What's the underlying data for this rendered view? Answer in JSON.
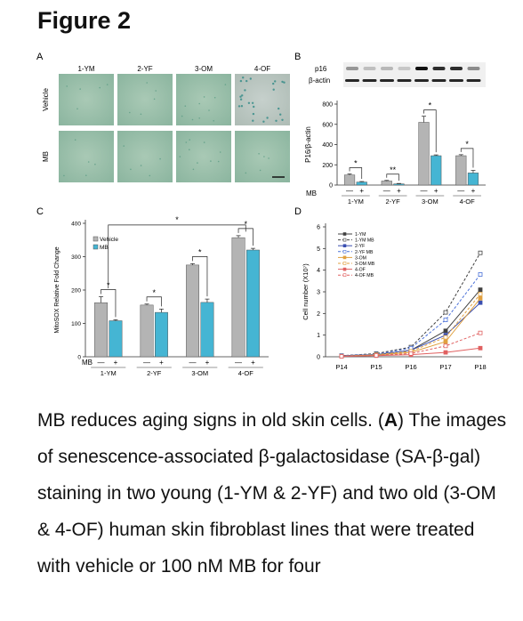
{
  "figure": {
    "title": "Figure 2",
    "panel_labels": {
      "a": "A",
      "b": "B",
      "c": "C",
      "d": "D"
    }
  },
  "panelA": {
    "columns": [
      "1-YM",
      "2-YF",
      "3-OM",
      "4-OF"
    ],
    "rows": [
      "Vehicle",
      "MB"
    ]
  },
  "panelB": {
    "blot_labels": [
      "p16",
      "β-actin"
    ],
    "mb_label": "MB",
    "signs": [
      "—",
      "+",
      "—",
      "+",
      "—",
      "+",
      "—",
      "+"
    ]
  },
  "panelC": {
    "mb_label": "MB",
    "signs": [
      "—",
      "+",
      "—",
      "+",
      "—",
      "+",
      "—",
      "+"
    ]
  },
  "caption": {
    "lead": "MB reduces aging signs in old skin cells. (",
    "bold": "A",
    "rest": ") The images of senescence-associated β-galactosidase (SA-β-gal) staining in two young (1-YM & 2-YF) and two old (3-OM & 4-OF) human skin fibroblast lines that were treated with vehicle or 100 nM MB for four"
  },
  "chart_data": [
    {
      "type": "bar",
      "panel": "B",
      "categories": [
        "1-YM",
        "2-YF",
        "3-OM",
        "4-OF"
      ],
      "series": [
        {
          "name": "Vehicle",
          "values": [
            100,
            40,
            620,
            290
          ],
          "errors": [
            10,
            6,
            60,
            10
          ]
        },
        {
          "name": "MB",
          "values": [
            30,
            12,
            290,
            120
          ],
          "errors": [
            5,
            4,
            8,
            25
          ]
        }
      ],
      "ylabel": "P16/β-actin",
      "ylim": [
        0,
        800
      ],
      "yticks": [
        0,
        200,
        400,
        600,
        800
      ],
      "significance": [
        "*",
        "**",
        "*",
        "*"
      ],
      "colors": {
        "Vehicle": "#b4b4b4",
        "MB": "#45b5d3"
      }
    },
    {
      "type": "bar",
      "panel": "C",
      "categories": [
        "1-YM",
        "2-YF",
        "3-OM",
        "4-OF"
      ],
      "series": [
        {
          "name": "Vehicle",
          "values": [
            162,
            155,
            275,
            357
          ],
          "errors": [
            18,
            3,
            4,
            6
          ]
        },
        {
          "name": "MB",
          "values": [
            108,
            133,
            163,
            320
          ],
          "errors": [
            3,
            10,
            10,
            5
          ]
        }
      ],
      "ylabel": "MitoSOX Relative Fold Change",
      "ylim": [
        0,
        400
      ],
      "yticks": [
        0,
        100,
        200,
        300,
        400
      ],
      "legend": [
        "Vehicle",
        "MB"
      ],
      "legend_position": "top-left",
      "significance": [
        "*",
        "*",
        "*",
        "*"
      ],
      "colors": {
        "Vehicle": "#b4b4b4",
        "MB": "#45b5d3"
      }
    },
    {
      "type": "line",
      "panel": "D",
      "x": [
        "P14",
        "P15",
        "P16",
        "P17",
        "P18"
      ],
      "ylabel": "Cell number (X10⁷)",
      "ylim": [
        0,
        6
      ],
      "yticks": [
        0,
        1,
        2,
        3,
        4,
        5,
        6
      ],
      "series": [
        {
          "name": "1-YM",
          "values": [
            0.05,
            0.1,
            0.3,
            1.2,
            3.1
          ],
          "color": "#404040",
          "dashed": false
        },
        {
          "name": "1-YM MB",
          "values": [
            0.05,
            0.15,
            0.45,
            2.05,
            4.8
          ],
          "color": "#404040",
          "dashed": true
        },
        {
          "name": "2-YF",
          "values": [
            0.05,
            0.1,
            0.3,
            1.0,
            2.5
          ],
          "color": "#3a4fb0",
          "dashed": false
        },
        {
          "name": "2-YF MB",
          "values": [
            0.05,
            0.12,
            0.4,
            1.7,
            3.8
          ],
          "color": "#4a70d8",
          "dashed": true
        },
        {
          "name": "3-OM",
          "values": [
            0.03,
            0.08,
            0.2,
            0.7,
            2.7
          ],
          "color": "#e0a040",
          "dashed": false
        },
        {
          "name": "3-OM MB",
          "values": [
            0.03,
            0.1,
            0.25,
            0.9,
            2.9
          ],
          "color": "#e0a040",
          "dashed": true
        },
        {
          "name": "4-OF",
          "values": [
            0.02,
            0.05,
            0.1,
            0.2,
            0.4
          ],
          "color": "#e06060",
          "dashed": false
        },
        {
          "name": "4-OF MB",
          "values": [
            0.02,
            0.06,
            0.15,
            0.5,
            1.1
          ],
          "color": "#e06060",
          "dashed": true
        }
      ],
      "legend_position": "top-left"
    }
  ]
}
